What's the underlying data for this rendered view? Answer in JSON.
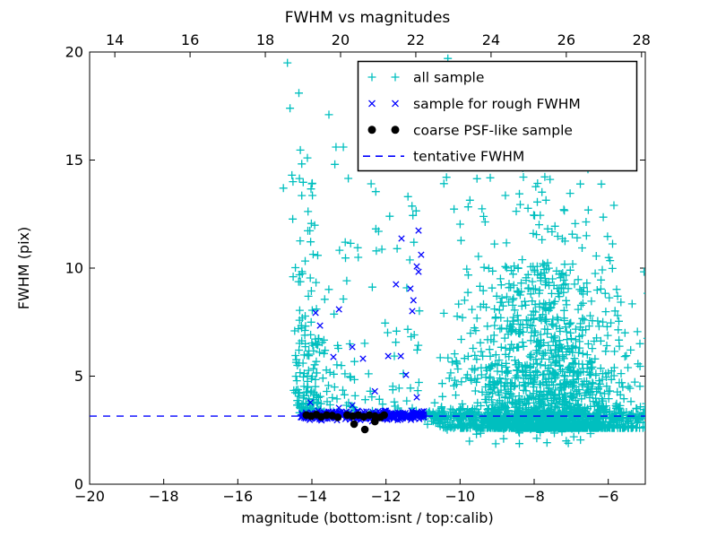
{
  "chart_data": {
    "type": "scatter",
    "title": "FWHM vs magnitudes",
    "xlabel": "magnitude (bottom:isnt / top:calib)",
    "ylabel": "FWHM (pix)",
    "x_bottom": {
      "range": [
        -20,
        -5
      ],
      "ticks": [
        -20,
        -18,
        -16,
        -14,
        -12,
        -10,
        -8,
        -6
      ],
      "tick_labels": [
        "−20",
        "−18",
        "−16",
        "−14",
        "−12",
        "−10",
        "−8",
        "−6"
      ]
    },
    "x_top": {
      "range": [
        13.33,
        28.1
      ],
      "ticks": [
        14,
        16,
        18,
        20,
        22,
        24,
        26,
        28
      ],
      "tick_labels": [
        "14",
        "16",
        "18",
        "20",
        "22",
        "24",
        "26",
        "28"
      ]
    },
    "y": {
      "range": [
        0,
        20
      ],
      "ticks": [
        0,
        5,
        10,
        15,
        20
      ],
      "tick_labels": [
        "0",
        "5",
        "10",
        "15",
        "20"
      ]
    },
    "grid": false,
    "legend_position": "upper center-right",
    "colors": {
      "all_sample": "#00BFBF",
      "rough_fwhm": "#0000FF",
      "psf_like": "#000000",
      "tentative_line": "#0000FF",
      "axes": "#000000",
      "background": "#FFFFFF"
    },
    "legend": [
      {
        "label": "all sample",
        "marker": "plus",
        "color": "#00BFBF"
      },
      {
        "label": "sample for rough FWHM",
        "marker": "x",
        "color": "#0000FF"
      },
      {
        "label": "coarse PSF-like sample",
        "marker": "dot",
        "color": "#000000"
      },
      {
        "label": "tentative FWHM",
        "marker": "dashes",
        "color": "#0000FF"
      }
    ],
    "tentative_fwhm_value": 3.15,
    "seed": 1337,
    "series": {
      "all_sample": {
        "marker": "plus",
        "color": "#00BFBF",
        "clusters": [
          {
            "name": "left-column",
            "n": 75,
            "x": {
              "type": "gauss",
              "mu": -14.15,
              "sd": 0.2,
              "min": -14.55,
              "max": -13.7
            },
            "y": {
              "type": "pow",
              "base": 3.2,
              "range": 13.5,
              "exp": 2.0
            }
          },
          {
            "name": "mid-sparse",
            "n": 120,
            "x": {
              "type": "uniform",
              "a": -14.45,
              "b": -11.1
            },
            "y": {
              "type": "pow",
              "base": 3.3,
              "range": 11.5,
              "exp": 2.6
            }
          },
          {
            "name": "left-low-clump",
            "n": 70,
            "x": {
              "type": "gauss",
              "mu": -14.0,
              "sd": 0.3,
              "min": -14.5,
              "max": -13.3
            },
            "y": {
              "type": "pow",
              "base": 3.3,
              "range": 3.6,
              "exp": 1.6
            }
          },
          {
            "name": "right-cloud-core",
            "n": 1500,
            "x": {
              "type": "gauss",
              "mu": -7.7,
              "sd": 1.15,
              "min": -10.7,
              "max": -4.82
            },
            "y": {
              "type": "pow",
              "base": 2.6,
              "range": 7.5,
              "exp": 3.5
            }
          },
          {
            "name": "right-cloud-upper",
            "n": 230,
            "x": {
              "type": "gauss",
              "mu": -7.9,
              "sd": 1.15,
              "min": -10.6,
              "max": -4.85
            },
            "y": {
              "type": "pow",
              "base": 4.5,
              "range": 10.8,
              "exp": 1.9
            }
          },
          {
            "name": "right-tight-band",
            "n": 450,
            "x": {
              "type": "uniform",
              "a": -10.95,
              "b": -4.82
            },
            "y": {
              "type": "gauss",
              "mu": 3.1,
              "sd": 0.22,
              "min": 2.35,
              "max": 3.8
            }
          },
          {
            "name": "below-line-sparse",
            "n": 22,
            "x": {
              "type": "gauss",
              "mu": -7.8,
              "sd": 1.0,
              "min": -10.0,
              "max": -5.0
            },
            "y": {
              "type": "uniform",
              "a": 1.85,
              "b": 2.6
            }
          }
        ],
        "outlier_points": [
          [
            -14.66,
            19.5
          ],
          [
            -10.33,
            19.7
          ],
          [
            -14.35,
            18.1
          ],
          [
            -14.59,
            17.4
          ],
          [
            -13.54,
            17.1
          ],
          [
            -13.35,
            15.6
          ],
          [
            -13.15,
            15.6
          ],
          [
            -14.12,
            15.1
          ],
          [
            -13.38,
            14.8
          ],
          [
            -14.54,
            14.3
          ],
          [
            -14.51,
            14.0
          ],
          [
            -14.0,
            13.9
          ],
          [
            -14.77,
            13.7
          ],
          [
            -12.4,
            13.9
          ],
          [
            -11.9,
            12.4
          ],
          [
            -12.2,
            11.7
          ],
          [
            -13.1,
            11.2
          ],
          [
            -12.75,
            10.5
          ],
          [
            -11.7,
            10.9
          ]
        ]
      },
      "rough_fwhm": {
        "marker": "x",
        "color": "#0000FF",
        "band": {
          "n": 300,
          "x": {
            "type": "uniform",
            "a": -14.3,
            "b": -10.93
          },
          "y": {
            "type": "gauss",
            "mu": 3.17,
            "sd": 0.1,
            "min": 2.9,
            "max": 3.5
          }
        },
        "points": [
          [
            -11.12,
            11.74
          ],
          [
            -11.58,
            11.37
          ],
          [
            -11.05,
            10.62
          ],
          [
            -11.17,
            10.08
          ],
          [
            -11.12,
            9.83
          ],
          [
            -11.73,
            9.25
          ],
          [
            -11.34,
            9.05
          ],
          [
            -11.26,
            8.51
          ],
          [
            -11.29,
            8.01
          ],
          [
            -13.9,
            7.93
          ],
          [
            -13.27,
            8.09
          ],
          [
            -13.78,
            7.34
          ],
          [
            -12.91,
            6.35
          ],
          [
            -13.42,
            5.89
          ],
          [
            -12.62,
            5.81
          ],
          [
            -11.94,
            5.93
          ],
          [
            -11.6,
            5.93
          ],
          [
            -11.46,
            5.06
          ],
          [
            -14.04,
            3.78
          ],
          [
            -12.91,
            3.65
          ],
          [
            -11.17,
            4.02
          ],
          [
            -13.27,
            3.53
          ],
          [
            -12.3,
            4.3
          ]
        ]
      },
      "psf_like": {
        "marker": "dot",
        "color": "#000000",
        "points": [
          [
            -14.15,
            3.2
          ],
          [
            -14.02,
            3.15
          ],
          [
            -13.88,
            3.22
          ],
          [
            -13.75,
            3.12
          ],
          [
            -13.6,
            3.2
          ],
          [
            -13.45,
            3.18
          ],
          [
            -13.3,
            3.1
          ],
          [
            -13.05,
            3.2
          ],
          [
            -12.9,
            3.15
          ],
          [
            -12.75,
            3.2
          ],
          [
            -12.6,
            3.12
          ],
          [
            -12.45,
            3.2
          ],
          [
            -12.3,
            3.15
          ],
          [
            -12.15,
            3.1
          ],
          [
            -12.05,
            3.2
          ],
          [
            -12.86,
            2.78
          ],
          [
            -12.57,
            2.53
          ],
          [
            -12.3,
            2.9
          ]
        ]
      },
      "tentative_fwhm_line": {
        "style": "dashed",
        "color": "#0000FF",
        "y": 3.15
      }
    }
  }
}
